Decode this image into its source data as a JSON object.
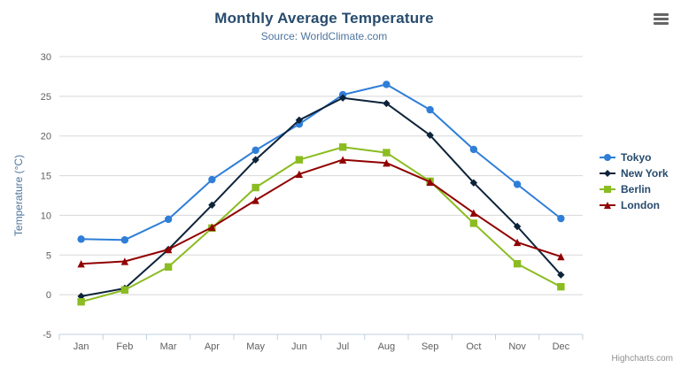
{
  "header": {
    "title": "Monthly Average Temperature",
    "subtitle": "Source: WorldClimate.com"
  },
  "credits": {
    "label": "Highcharts.com"
  },
  "export_menu": {
    "icon": "hamburger-icon"
  },
  "chart_data": {
    "type": "line",
    "title": "Monthly Average Temperature",
    "subtitle": "Source: WorldClimate.com",
    "categories": [
      "Jan",
      "Feb",
      "Mar",
      "Apr",
      "May",
      "Jun",
      "Jul",
      "Aug",
      "Sep",
      "Oct",
      "Nov",
      "Dec"
    ],
    "xlabel": "",
    "ylabel": "Temperature (°C)",
    "ylim": [
      -5,
      30
    ],
    "ytick_interval": 5,
    "grid": true,
    "legend_position": "right",
    "colors": {
      "grid": "#d8d8d8",
      "axis_line": "#c0d0e0",
      "title": "#274b6d",
      "subtitle": "#4d759e"
    },
    "series": [
      {
        "name": "Tokyo",
        "color": "#2f7ed8",
        "marker": "circle",
        "values": [
          7.0,
          6.9,
          9.5,
          14.5,
          18.2,
          21.5,
          25.2,
          26.5,
          23.3,
          18.3,
          13.9,
          9.6
        ]
      },
      {
        "name": "New York",
        "color": "#0d233a",
        "marker": "diamond",
        "values": [
          -0.2,
          0.8,
          5.7,
          11.3,
          17.0,
          22.0,
          24.8,
          24.1,
          20.1,
          14.1,
          8.6,
          2.5
        ]
      },
      {
        "name": "Berlin",
        "color": "#8bbc21",
        "marker": "square",
        "values": [
          -0.9,
          0.6,
          3.5,
          8.4,
          13.5,
          17.0,
          18.6,
          17.9,
          14.3,
          9.0,
          3.9,
          1.0
        ]
      },
      {
        "name": "London",
        "color": "#910000",
        "marker": "triangle",
        "values": [
          3.9,
          4.2,
          5.7,
          8.5,
          11.9,
          15.2,
          17.0,
          16.6,
          14.2,
          10.3,
          6.6,
          4.8
        ]
      }
    ]
  }
}
